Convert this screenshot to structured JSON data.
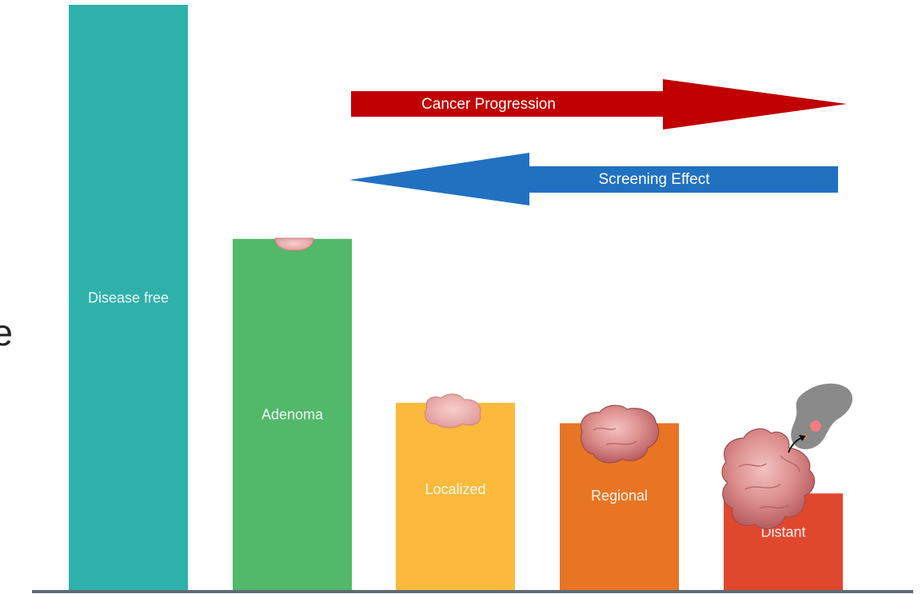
{
  "edge_glyph": "e",
  "bars": [
    {
      "id": "disease-free",
      "label": "Disease free",
      "value": 100,
      "color": "#2eb1ab"
    },
    {
      "id": "adenoma",
      "label": "Adenoma",
      "value": 60,
      "color": "#52b86a"
    },
    {
      "id": "localized",
      "label": "Localized",
      "value": 32,
      "color": "#fbba3c"
    },
    {
      "id": "regional",
      "label": "Regional",
      "value": 28.5,
      "color": "#e87524"
    },
    {
      "id": "distant",
      "label": "Distant",
      "value": 16.5,
      "color": "#e0482e"
    }
  ],
  "arrows": {
    "progression": {
      "label": "Cancer Progression",
      "direction": "right",
      "color": "#c00000"
    },
    "screening": {
      "label": "Screening Effect",
      "direction": "left",
      "color": "#2171c1"
    }
  },
  "colors": {
    "baseline": "#5f6b72",
    "tumor": "#d98a8a",
    "organ": "#8c8c8c"
  }
}
